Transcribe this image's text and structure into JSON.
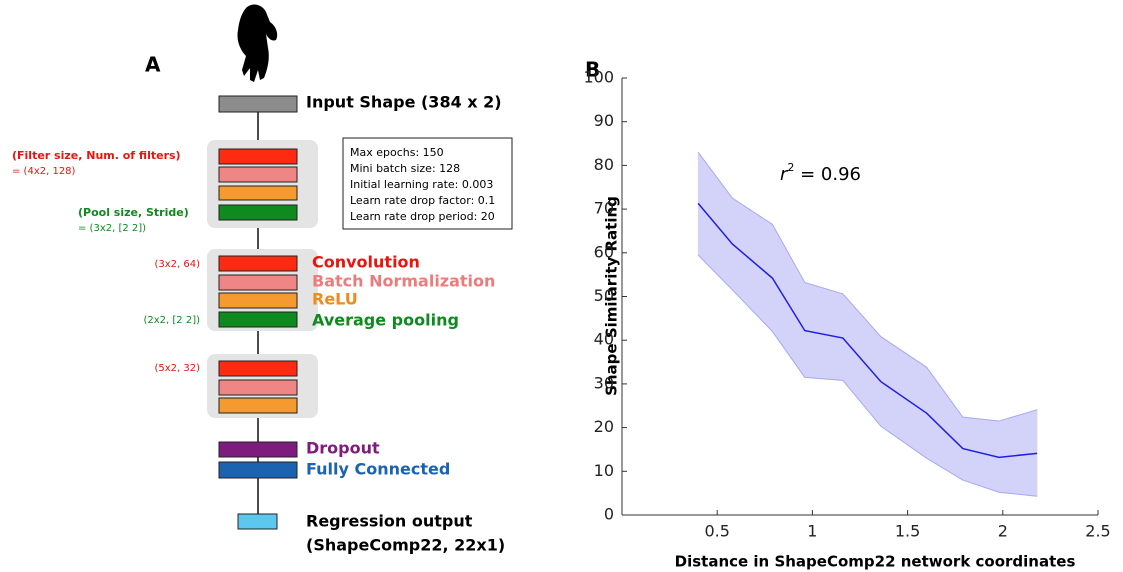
{
  "diagram": {
    "panel_label": "A",
    "input_label": "Input Shape (384 x 2)",
    "filter_heading": "(Filter size, Num. of filters)",
    "filter_value": "= (4x2, 128)",
    "pool_heading": "(Pool size, Stride)",
    "pool_value": "= (3x2, [2 2])",
    "settings": [
      "Max epochs: 150",
      "Mini batch size: 128",
      "Initial learning rate: 0.003",
      "Learn rate drop factor: 0.1",
      "Learn rate drop period: 20"
    ],
    "legend": {
      "convolution": "Convolution",
      "batch_norm": "Batch Normalization",
      "relu": "ReLU",
      "avg_pool": "Average pooling",
      "dropout": "Dropout",
      "fully_connected": "Fully Connected"
    },
    "conv2_params": "(3x2, 64)",
    "pool2_params": "(2x2, [2 2])",
    "conv3_params": "(5x2, 32)",
    "output_label": [
      "Regression output",
      "(ShapeComp22, 22x1)"
    ]
  },
  "chart_data": {
    "type": "line",
    "panel_label": "B",
    "x_label": "Distance in ShapeComp22 network coordinates",
    "y_label": "Shape Similarity Rating",
    "annotation": [
      "r",
      "2",
      " = 0.96"
    ],
    "x": [
      0.4,
      0.58,
      0.79,
      0.96,
      1.16,
      1.36,
      1.6,
      1.79,
      1.98,
      2.18
    ],
    "series": [
      {
        "color": "#1f1fe0",
        "values": [
          71.3,
          62,
          54.2,
          42.2,
          40.5,
          30.5,
          23.3,
          15.2,
          13.2,
          14.1
        ]
      }
    ],
    "band": {
      "color": "#d3d3fa",
      "upper": [
        83,
        72.5,
        66.5,
        53.2,
        50.6,
        40.8,
        33.8,
        22.4,
        21.5,
        24.1
      ],
      "lower": [
        59.5,
        51.5,
        42,
        31.5,
        30.8,
        20.3,
        13,
        8,
        5.2,
        4.3
      ]
    },
    "xlim": [
      0,
      2.5
    ],
    "xticks": [
      0.5,
      1,
      1.5,
      2,
      2.5
    ],
    "ylim": [
      0,
      100
    ],
    "yticks": [
      0,
      10,
      20,
      30,
      40,
      50,
      60,
      70,
      80,
      90,
      100
    ]
  }
}
